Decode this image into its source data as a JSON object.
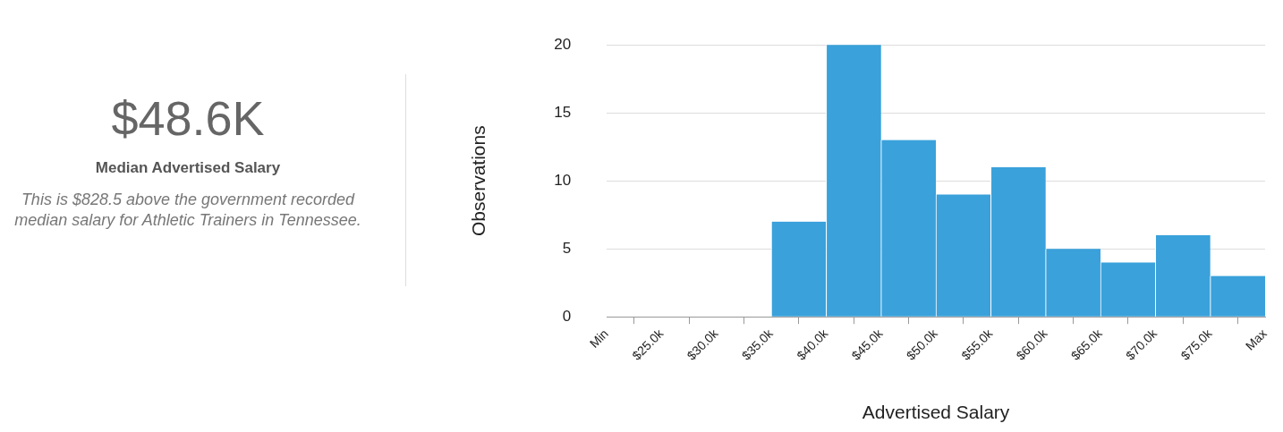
{
  "chart_data": [
    {
      "type": "other",
      "title": "$48.6K",
      "subtitle": "Median Advertised Salary",
      "annotations": [
        "This is $828.5 above the government recorded median salary for Athletic Trainers in Tennessee."
      ]
    },
    {
      "type": "histogram",
      "xlabel": "Advertised Salary",
      "ylabel": "Observations",
      "bins": [
        20,
        25,
        30,
        35,
        40,
        45,
        50,
        55,
        60,
        65,
        70,
        75,
        80
      ],
      "values": [
        0,
        0,
        0,
        7,
        20,
        13,
        9,
        11,
        5,
        4,
        6,
        3
      ],
      "color": "#3aa1db",
      "xlim": [
        20,
        80
      ],
      "xticks": [
        {
          "value": 20,
          "label": "Min"
        },
        {
          "value": 25,
          "label": "$25.0k"
        },
        {
          "value": 30,
          "label": "$30.0k"
        },
        {
          "value": 35,
          "label": "$35.0k"
        },
        {
          "value": 40,
          "label": "$40.0k"
        },
        {
          "value": 45,
          "label": "$45.0k"
        },
        {
          "value": 50,
          "label": "$50.0k"
        },
        {
          "value": 55,
          "label": "$55.0k"
        },
        {
          "value": 60,
          "label": "$60.0k"
        },
        {
          "value": 65,
          "label": "$65.0k"
        },
        {
          "value": 70,
          "label": "$70.0k"
        },
        {
          "value": 75,
          "label": "$75.0k"
        },
        {
          "value": 80,
          "label": "Max"
        }
      ],
      "ylim": [
        0,
        20
      ],
      "yticks": [
        0,
        5,
        10,
        15,
        20
      ],
      "grid": "y"
    }
  ]
}
